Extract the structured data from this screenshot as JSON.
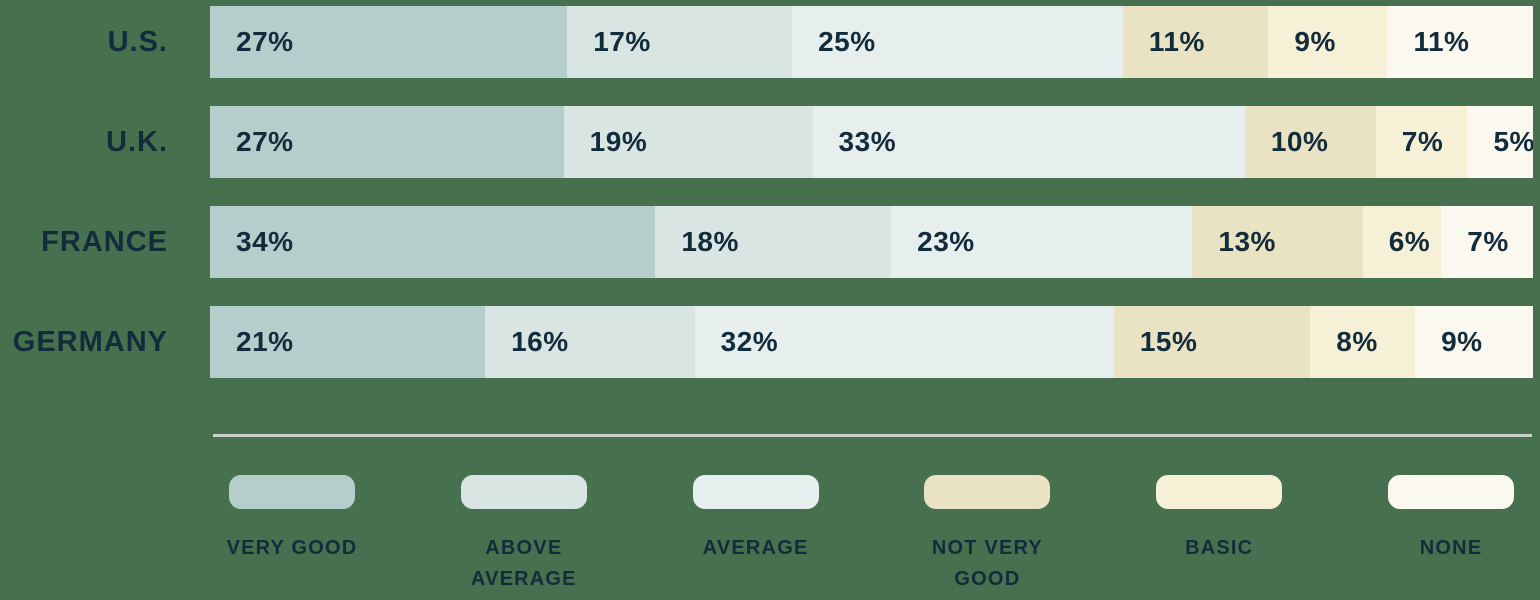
{
  "chart_data": {
    "type": "bar",
    "variant": "horizontal-stacked",
    "title": "",
    "value_suffix": "%",
    "categories": [
      "U.S.",
      "U.K.",
      "FRANCE",
      "GERMANY"
    ],
    "series_labels": [
      "VERY GOOD",
      "ABOVE AVERAGE",
      "AVERAGE",
      "NOT VERY GOOD",
      "BASIC",
      "NONE"
    ],
    "series_colors": [
      "#b6cecb",
      "#d9e5e2",
      "#e6efed",
      "#eae3c3",
      "#f6f0d7",
      "#faf8ef"
    ],
    "rows": [
      {
        "label": "U.S.",
        "values": [
          27,
          17,
          25,
          11,
          9,
          11
        ]
      },
      {
        "label": "U.K.",
        "values": [
          27,
          19,
          33,
          10,
          7,
          5
        ]
      },
      {
        "label": "FRANCE",
        "values": [
          34,
          18,
          23,
          13,
          6,
          7
        ]
      },
      {
        "label": "GERMANY",
        "values": [
          21,
          16,
          32,
          15,
          8,
          9
        ]
      }
    ],
    "legend_position": "bottom",
    "grid": false,
    "axis_labels_shown": false
  },
  "colors": {
    "background": "#47714e",
    "label_text": "#132c3c",
    "divider": "#c9d3cb"
  }
}
